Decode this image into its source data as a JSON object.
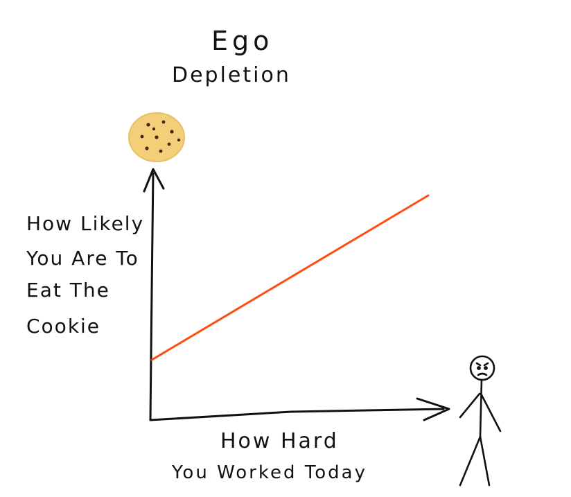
{
  "chart_data": {
    "type": "line",
    "title": "Ego",
    "subtitle": "Depletion",
    "ylabel": [
      "How Likely",
      "You Are To",
      "Eat The",
      "Cookie"
    ],
    "xlabel": [
      "How Hard",
      "You Worked Today"
    ],
    "series": [
      {
        "x": [
          0,
          1
        ],
        "y": [
          0.23,
          1.0
        ]
      }
    ],
    "xlim": [
      0,
      1
    ],
    "ylim": [
      0,
      1
    ],
    "grid": false,
    "colors": {
      "line": "#ff4d12",
      "axes": "#111111",
      "cookie": "#f2cf78",
      "chips": "#4a2412"
    },
    "icons": {
      "y_end": "cookie-icon",
      "x_end": "stick-figure-icon"
    }
  }
}
